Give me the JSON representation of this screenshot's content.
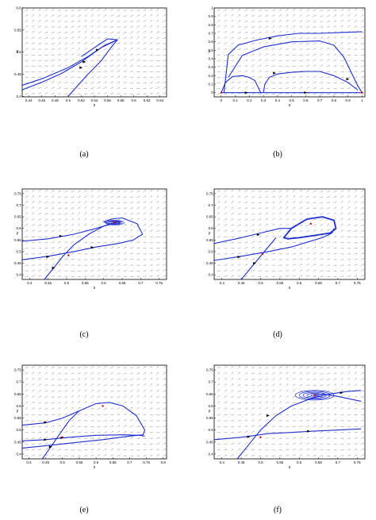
{
  "chart_data": [
    {
      "panel": "(a)",
      "type": "line",
      "xlabel": "x",
      "ylabel": "y",
      "xlim": [
        0.43,
        0.65
      ],
      "ylim": [
        0.399,
        0.6
      ],
      "x_ticks": [
        "0.44",
        "0.46",
        "0.48",
        "0.5",
        "0.52",
        "0.54",
        "0.56",
        "0.58",
        "0.6",
        "0.62",
        "0.64"
      ],
      "x_tick_values": [
        0.44,
        0.46,
        0.48,
        0.5,
        0.52,
        0.54,
        0.56,
        0.58,
        0.6,
        0.62,
        0.64
      ],
      "y_ticks": [
        "0.4",
        "0.45",
        "0.5",
        "0.55",
        "0.6"
      ],
      "y_tick_values": [
        0.4,
        0.45,
        0.5,
        0.55,
        0.6
      ],
      "field": true,
      "trajectories": [
        {
          "x": [
            0.43,
            0.46,
            0.49,
            0.52,
            0.55,
            0.575
          ],
          "y": [
            0.415,
            0.432,
            0.452,
            0.478,
            0.51,
            0.528
          ]
        },
        {
          "x": [
            0.5,
            0.515,
            0.53,
            0.55,
            0.565,
            0.575,
            0.56,
            0.54,
            0.52
          ],
          "y": [
            0.4,
            0.425,
            0.45,
            0.48,
            0.51,
            0.528,
            0.53,
            0.51,
            0.49
          ]
        },
        {
          "x": [
            0.43,
            0.46,
            0.5,
            0.53,
            0.555,
            0.575
          ],
          "y": [
            0.425,
            0.44,
            0.465,
            0.49,
            0.515,
            0.528
          ]
        }
      ],
      "arrows": [
        {
          "x": 0.525,
          "y": 0.478
        },
        {
          "x": 0.545,
          "y": 0.505
        },
        {
          "x": 0.52,
          "y": 0.465
        }
      ],
      "points": []
    },
    {
      "panel": "(b)",
      "type": "line",
      "xlabel": "x",
      "ylabel": "y",
      "xlim": [
        -0.05,
        1.02
      ],
      "ylim": [
        -0.05,
        1.0
      ],
      "x_ticks": [
        "0",
        "0.1",
        "0.2",
        "0.3",
        "0.4",
        "0.5",
        "0.6",
        "0.7",
        "0.8",
        "0.9",
        "1"
      ],
      "x_tick_values": [
        0,
        0.1,
        0.2,
        0.3,
        0.4,
        0.5,
        0.6,
        0.7,
        0.8,
        0.9,
        1
      ],
      "y_ticks": [
        "0",
        "0.1",
        "0.2",
        "0.3",
        "0.4",
        "0.5",
        "0.6",
        "0.7",
        "0.8",
        "0.9",
        "1"
      ],
      "y_tick_values": [
        0,
        0.1,
        0.2,
        0.3,
        0.4,
        0.5,
        0.6,
        0.7,
        0.8,
        0.9,
        1
      ],
      "field": true,
      "trajectories": [
        {
          "x": [
            0,
            1
          ],
          "y": [
            0,
            0
          ]
        },
        {
          "x": [
            0.02,
            0.05,
            0.12,
            0.25,
            0.4,
            0.55,
            0.7,
            0.85,
            1.0
          ],
          "y": [
            0.0,
            0.45,
            0.56,
            0.62,
            0.67,
            0.7,
            0.7,
            0.71,
            0.72
          ]
        },
        {
          "x": [
            0.05,
            0.15,
            0.3,
            0.5,
            0.7,
            0.8,
            0.87,
            0.92,
            0.97,
            1.0
          ],
          "y": [
            0.18,
            0.44,
            0.54,
            0.6,
            0.61,
            0.56,
            0.42,
            0.25,
            0.08,
            0.0
          ]
        },
        {
          "x": [
            0.0,
            0.03,
            0.08,
            0.15,
            0.2,
            0.24,
            0.26,
            0.28
          ],
          "y": [
            0.0,
            0.12,
            0.19,
            0.2,
            0.18,
            0.14,
            0.07,
            0.0
          ]
        },
        {
          "x": [
            0.3,
            0.31,
            0.34,
            0.4,
            0.5,
            0.6,
            0.7,
            0.8,
            0.9,
            0.97
          ],
          "y": [
            0.0,
            0.1,
            0.18,
            0.22,
            0.24,
            0.25,
            0.25,
            0.2,
            0.12,
            0.03
          ]
        }
      ],
      "arrows": [
        {
          "x": 0.35,
          "y": 0.64
        },
        {
          "x": 0.38,
          "y": 0.23
        },
        {
          "x": 0.6,
          "y": 0.0
        },
        {
          "x": 0.18,
          "y": 0.0
        },
        {
          "x": 0.9,
          "y": 0.16
        }
      ],
      "points": [
        {
          "x": 0,
          "y": 0,
          "color": "#cc0000"
        },
        {
          "x": 1,
          "y": 0,
          "color": "#cc0000"
        }
      ]
    },
    {
      "panel": "(c)",
      "type": "line",
      "xlabel": "x",
      "ylabel": "y",
      "xlim": [
        0.38,
        0.77
      ],
      "ylim": [
        0.38,
        0.77
      ],
      "x_ticks": [
        "0.4",
        "0.45",
        "0.5",
        "0.55",
        "0.6",
        "0.65",
        "0.7",
        "0.75"
      ],
      "x_tick_values": [
        0.4,
        0.45,
        0.5,
        0.55,
        0.6,
        0.65,
        0.7,
        0.75
      ],
      "y_ticks": [
        "0.4",
        "0.45",
        "0.5",
        "0.55",
        "0.6",
        "0.65",
        "0.7",
        "0.75"
      ],
      "y_tick_values": [
        0.4,
        0.45,
        0.5,
        0.55,
        0.6,
        0.65,
        0.7,
        0.75
      ],
      "field": true,
      "trajectories": [
        {
          "x": [
            0.38,
            0.45,
            0.52,
            0.58,
            0.62,
            0.645,
            0.64
          ],
          "y": [
            0.545,
            0.555,
            0.575,
            0.6,
            0.62,
            0.63,
            0.62
          ]
        },
        {
          "x": [
            0.38,
            0.45,
            0.52,
            0.58,
            0.64,
            0.68,
            0.705,
            0.69,
            0.65,
            0.62,
            0.6,
            0.615
          ],
          "y": [
            0.465,
            0.48,
            0.5,
            0.52,
            0.535,
            0.55,
            0.575,
            0.62,
            0.645,
            0.64,
            0.628,
            0.62
          ]
        },
        {
          "x": [
            0.44,
            0.465,
            0.49,
            0.52,
            0.56,
            0.6,
            0.625
          ],
          "y": [
            0.38,
            0.43,
            0.48,
            0.53,
            0.575,
            0.61,
            0.62
          ]
        }
      ],
      "focus": {
        "x": 0.63,
        "y": 0.625,
        "rx": 0.025,
        "ry": 0.01
      },
      "arrows": [
        {
          "x": 0.485,
          "y": 0.567
        },
        {
          "x": 0.45,
          "y": 0.478
        },
        {
          "x": 0.57,
          "y": 0.518
        },
        {
          "x": 0.465,
          "y": 0.43
        }
      ],
      "points": [
        {
          "x": 0.505,
          "y": 0.484,
          "color": "#cc0000"
        },
        {
          "x": 0.63,
          "y": 0.627,
          "color": "#cc0000"
        }
      ]
    },
    {
      "panel": "(d)",
      "type": "line",
      "xlabel": "x",
      "ylabel": "y",
      "xlim": [
        0.38,
        0.77
      ],
      "ylim": [
        0.38,
        0.77
      ],
      "x_ticks": [
        "0.4",
        "0.45",
        "0.5",
        "0.55",
        "0.6",
        "0.65",
        "0.7",
        "0.75"
      ],
      "x_tick_values": [
        0.4,
        0.45,
        0.5,
        0.55,
        0.6,
        0.65,
        0.7,
        0.75
      ],
      "y_ticks": [
        "0.4",
        "0.45",
        "0.5",
        "0.55",
        "0.6",
        "0.65",
        "0.7",
        "0.75"
      ],
      "y_tick_values": [
        0.4,
        0.45,
        0.5,
        0.55,
        0.6,
        0.65,
        0.7,
        0.75
      ],
      "field": true,
      "trajectories": [
        {
          "x": [
            0.38,
            0.45,
            0.5,
            0.55,
            0.58
          ],
          "y": [
            0.535,
            0.56,
            0.58,
            0.6,
            0.6
          ]
        },
        {
          "x": [
            0.38,
            0.45,
            0.52,
            0.58,
            0.62,
            0.66,
            0.685,
            0.69
          ],
          "y": [
            0.462,
            0.48,
            0.5,
            0.52,
            0.54,
            0.56,
            0.58,
            0.6
          ]
        },
        {
          "x": [
            0.45,
            0.48,
            0.51,
            0.54
          ],
          "y": [
            0.38,
            0.44,
            0.5,
            0.56
          ]
        }
      ],
      "cycle": {
        "x": [
          0.56,
          0.58,
          0.62,
          0.66,
          0.69,
          0.695,
          0.68,
          0.64,
          0.6,
          0.57,
          0.56
        ],
        "y": [
          0.56,
          0.6,
          0.64,
          0.65,
          0.635,
          0.6,
          0.58,
          0.57,
          0.56,
          0.555,
          0.56
        ]
      },
      "arrows": [
        {
          "x": 0.495,
          "y": 0.573
        },
        {
          "x": 0.445,
          "y": 0.477
        },
        {
          "x": 0.485,
          "y": 0.45
        }
      ],
      "points": [
        {
          "x": 0.505,
          "y": 0.49,
          "color": "#cc0000"
        },
        {
          "x": 0.63,
          "y": 0.62,
          "color": "#cc0000"
        }
      ]
    },
    {
      "panel": "(e)",
      "type": "line",
      "xlabel": "x",
      "ylabel": "y",
      "xlim": [
        0.38,
        0.81
      ],
      "ylim": [
        0.38,
        0.77
      ],
      "x_ticks": [
        "0.4",
        "0.45",
        "0.5",
        "0.55",
        "0.6",
        "0.65",
        "0.7",
        "0.75",
        "0.8"
      ],
      "x_tick_values": [
        0.4,
        0.45,
        0.5,
        0.55,
        0.6,
        0.65,
        0.7,
        0.75,
        0.8
      ],
      "y_ticks": [
        "0.4",
        "0.45",
        "0.5",
        "0.55",
        "0.6",
        "0.65",
        "0.7",
        "0.75"
      ],
      "y_tick_values": [
        0.4,
        0.45,
        0.5,
        0.55,
        0.6,
        0.65,
        0.7,
        0.75
      ],
      "field": true,
      "trajectories": [
        {
          "x": [
            0.38,
            0.45,
            0.5,
            0.55,
            0.6,
            0.64,
            0.68,
            0.72,
            0.745,
            0.74,
            0.7,
            0.62,
            0.52,
            0.45,
            0.38
          ],
          "y": [
            0.52,
            0.53,
            0.55,
            0.58,
            0.61,
            0.615,
            0.6,
            0.56,
            0.5,
            0.48,
            0.475,
            0.46,
            0.445,
            0.435,
            0.425
          ]
        },
        {
          "x": [
            0.38,
            0.45,
            0.52,
            0.6,
            0.68,
            0.73,
            0.745
          ],
          "y": [
            0.455,
            0.46,
            0.47,
            0.478,
            0.48,
            0.478,
            0.475
          ]
        },
        {
          "x": [
            0.44,
            0.46,
            0.49,
            0.52,
            0.55
          ],
          "y": [
            0.38,
            0.42,
            0.48,
            0.54,
            0.58
          ]
        }
      ],
      "arrows": [
        {
          "x": 0.45,
          "y": 0.532
        },
        {
          "x": 0.45,
          "y": 0.46
        },
        {
          "x": 0.5,
          "y": 0.468
        },
        {
          "x": 0.465,
          "y": 0.43
        }
      ],
      "points": [
        {
          "x": 0.5,
          "y": 0.47,
          "color": "#cc0000"
        },
        {
          "x": 0.62,
          "y": 0.6,
          "color": "#cc0000"
        }
      ]
    },
    {
      "panel": "(f)",
      "type": "line",
      "xlabel": "x",
      "ylabel": "y",
      "xlim": [
        0.38,
        0.77
      ],
      "ylim": [
        0.38,
        0.77
      ],
      "x_ticks": [
        "0.4",
        "0.45",
        "0.5",
        "0.55",
        "0.6",
        "0.65",
        "0.7",
        "0.75"
      ],
      "x_tick_values": [
        0.4,
        0.45,
        0.5,
        0.55,
        0.6,
        0.65,
        0.7,
        0.75
      ],
      "y_ticks": [
        "0.4",
        "0.45",
        "0.5",
        "0.55",
        "0.6",
        "0.65",
        "0.7",
        "0.75"
      ],
      "y_tick_values": [
        0.4,
        0.45,
        0.5,
        0.55,
        0.6,
        0.65,
        0.7,
        0.75
      ],
      "field": true,
      "trajectories": [
        {
          "x": [
            0.38,
            0.45,
            0.52,
            0.58,
            0.63,
            0.7,
            0.76
          ],
          "y": [
            0.46,
            0.47,
            0.485,
            0.49,
            0.495,
            0.5,
            0.505
          ]
        },
        {
          "x": [
            0.44,
            0.47,
            0.5,
            0.54,
            0.58,
            0.62,
            0.65,
            0.68,
            0.72,
            0.76
          ],
          "y": [
            0.38,
            0.44,
            0.5,
            0.56,
            0.6,
            0.625,
            0.64,
            0.65,
            0.66,
            0.665
          ]
        },
        {
          "x": [
            0.76,
            0.73,
            0.7,
            0.66,
            0.64
          ],
          "y": [
            0.62,
            0.63,
            0.64,
            0.65,
            0.645
          ]
        }
      ],
      "focus": {
        "x": 0.64,
        "y": 0.645,
        "rx": 0.05,
        "ry": 0.02
      },
      "arrows": [
        {
          "x": 0.52,
          "y": 0.56
        },
        {
          "x": 0.47,
          "y": 0.472
        },
        {
          "x": 0.625,
          "y": 0.495
        },
        {
          "x": 0.71,
          "y": 0.655
        }
      ],
      "points": [
        {
          "x": 0.5,
          "y": 0.47,
          "color": "#cc0000"
        },
        {
          "x": 0.64,
          "y": 0.645,
          "color": "#cc0000"
        }
      ]
    }
  ],
  "colors": {
    "trajectory": "#1f2fd0",
    "field": "#9a9a9a",
    "frame": "#000000",
    "point": "#cc0000"
  }
}
